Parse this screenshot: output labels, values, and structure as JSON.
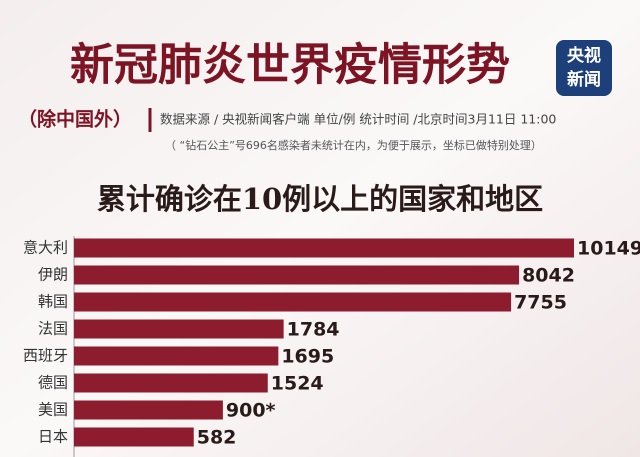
{
  "header": {
    "title": "新冠肺炎世界疫情形势",
    "scope": "（除中国外）",
    "source": "数据来源 / 央视新闻客户端  单位/例   统计时间 /北京时间3月11日 11:00",
    "note": "（ “钻石公主”号696名感染者未统计在内，为便于展示，坐标已做特别处理）"
  },
  "logo": {
    "line1": "央视",
    "line2": "新闻"
  },
  "chart_data": {
    "type": "bar",
    "orientation": "horizontal",
    "title": "累计确诊在10例以上的国家和地区",
    "categories": [
      "意大利",
      "伊朗",
      "韩国",
      "法国",
      "西班牙",
      "德国",
      "美国",
      "日本"
    ],
    "values": [
      10149,
      8042,
      7755,
      1784,
      1695,
      1524,
      900,
      582
    ],
    "value_labels": [
      "10149",
      "8042",
      "7755",
      "1784",
      "1695",
      "1524",
      "900*",
      "582"
    ],
    "color": "#8c1c2e",
    "xscale": "sqrt"
  }
}
